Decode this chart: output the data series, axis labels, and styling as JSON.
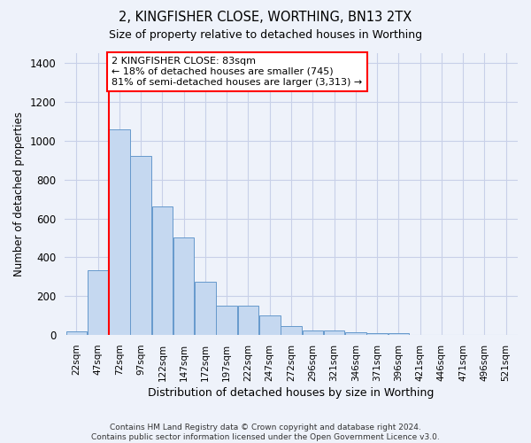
{
  "title1": "2, KINGFISHER CLOSE, WORTHING, BN13 2TX",
  "title2": "Size of property relative to detached houses in Worthing",
  "xlabel": "Distribution of detached houses by size in Worthing",
  "ylabel": "Number of detached properties",
  "categories": [
    "22sqm",
    "47sqm",
    "72sqm",
    "97sqm",
    "122sqm",
    "147sqm",
    "172sqm",
    "197sqm",
    "222sqm",
    "247sqm",
    "272sqm",
    "296sqm",
    "321sqm",
    "346sqm",
    "371sqm",
    "396sqm",
    "421sqm",
    "446sqm",
    "471sqm",
    "496sqm",
    "521sqm"
  ],
  "values": [
    20,
    335,
    1060,
    920,
    660,
    500,
    275,
    150,
    150,
    100,
    45,
    25,
    25,
    15,
    10,
    10,
    0,
    0,
    0,
    0,
    0
  ],
  "bar_color": "#c5d8f0",
  "bar_edge_color": "#6699cc",
  "vline_x": 2.0,
  "vline_color": "red",
  "annotation_text": "2 KINGFISHER CLOSE: 83sqm\n← 18% of detached houses are smaller (745)\n81% of semi-detached houses are larger (3,313) →",
  "annotation_box_color": "white",
  "annotation_box_edge": "red",
  "ylim": [
    0,
    1450
  ],
  "yticks": [
    0,
    200,
    400,
    600,
    800,
    1000,
    1200,
    1400
  ],
  "footer": "Contains HM Land Registry data © Crown copyright and database right 2024.\nContains public sector information licensed under the Open Government Licence v3.0.",
  "bg_color": "#eef2fa",
  "plot_bg_color": "#eef2fa",
  "grid_color": "#c8d0e8"
}
